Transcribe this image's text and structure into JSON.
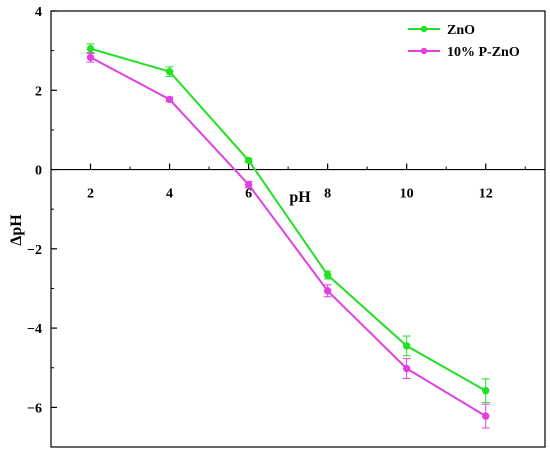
{
  "chart_data": {
    "type": "line",
    "xlabel": "pH",
    "ylabel": "ΔpH",
    "xlim": [
      1,
      13.5
    ],
    "ylim": [
      -7,
      4
    ],
    "x_ticks": [
      2,
      4,
      6,
      8,
      10,
      12
    ],
    "x_tick_labels": [
      "2",
      "4",
      "6",
      "8",
      "10",
      "12"
    ],
    "y_ticks": [
      4,
      2,
      0,
      -2,
      -4,
      -6
    ],
    "y_tick_labels": [
      "4",
      "2",
      "0",
      "−2",
      "−4",
      "−6"
    ],
    "x": [
      2,
      4,
      6,
      8,
      10,
      12
    ],
    "series": [
      {
        "name": "ZnO",
        "color": "#22e022",
        "values": [
          3.05,
          2.47,
          0.23,
          -2.66,
          -4.45,
          -5.58
        ],
        "errors": [
          0.12,
          0.12,
          0.05,
          0.1,
          0.25,
          0.3
        ]
      },
      {
        "name": "10% P-ZnO",
        "color": "#e040e0",
        "values": [
          2.83,
          1.77,
          -0.38,
          -3.06,
          -5.02,
          -6.22
        ],
        "errors": [
          0.12,
          0.06,
          0.08,
          0.15,
          0.25,
          0.3
        ]
      }
    ],
    "legend_position": "top-right",
    "grid": false
  }
}
